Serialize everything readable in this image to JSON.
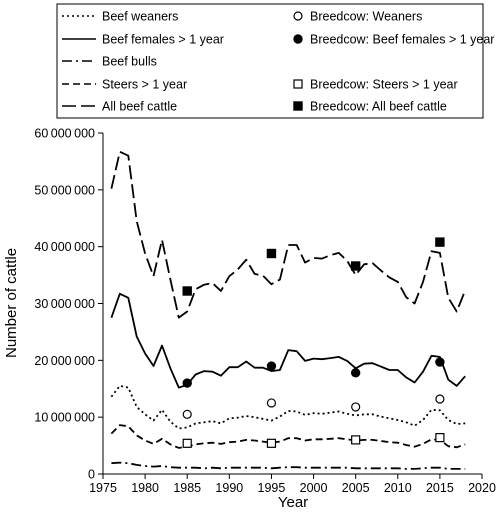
{
  "chart_data": {
    "type": "line",
    "title": "",
    "xlabel": "Year",
    "ylabel": "Number of cattle",
    "xlim": [
      1975,
      2020
    ],
    "ylim": [
      0,
      60000000
    ],
    "x_ticks": [
      "1975",
      "1980",
      "1985",
      "1990",
      "1995",
      "2000",
      "2005",
      "2010",
      "2015",
      "2020"
    ],
    "y_ticks": [
      "0",
      "10000000",
      "20000000",
      "30000000",
      "40000000",
      "50000000",
      "60000000"
    ],
    "grid": false,
    "legend_position": "top",
    "x": [
      1976,
      1977,
      1978,
      1979,
      1980,
      1981,
      1982,
      1983,
      1984,
      1985,
      1986,
      1987,
      1988,
      1989,
      1990,
      1991,
      1992,
      1993,
      1994,
      1995,
      1996,
      1997,
      1998,
      1999,
      2000,
      2001,
      2002,
      2003,
      2004,
      2005,
      2006,
      2007,
      2008,
      2009,
      2010,
      2011,
      2012,
      2013,
      2014,
      2015,
      2016,
      2017,
      2018
    ],
    "series": [
      {
        "name": "Beef weaners",
        "style": "dotted",
        "values": [
          13600000,
          15500000,
          15200000,
          11800000,
          10500000,
          9400000,
          11300000,
          9200000,
          8000000,
          8200000,
          8900000,
          9100000,
          9300000,
          8900000,
          9800000,
          9900000,
          10200000,
          10000000,
          9700000,
          9400000,
          10100000,
          11100000,
          11000000,
          10400000,
          10700000,
          10600000,
          10800000,
          11000000,
          10600000,
          10300000,
          10500000,
          10500000,
          10100000,
          9800000,
          9500000,
          9100000,
          8500000,
          9500000,
          11300000,
          11200000,
          9500000,
          8800000,
          8900000
        ]
      },
      {
        "name": "Beef females > 1 year",
        "style": "solid",
        "values": [
          27500000,
          31700000,
          31000000,
          24200000,
          21200000,
          19000000,
          22600000,
          18600000,
          15200000,
          15700000,
          17500000,
          18100000,
          18000000,
          17300000,
          18800000,
          18800000,
          19800000,
          18700000,
          18700000,
          18100000,
          18300000,
          21800000,
          21600000,
          19900000,
          20300000,
          20200000,
          20400000,
          20600000,
          19900000,
          18600000,
          19400000,
          19500000,
          18900000,
          18300000,
          18300000,
          17000000,
          16100000,
          18000000,
          20800000,
          20600000,
          16600000,
          15500000,
          17200000
        ]
      },
      {
        "name": "Beef bulls",
        "style": "dash-dot",
        "values": [
          1900000,
          2000000,
          1900000,
          1600000,
          1400000,
          1300000,
          1400000,
          1200000,
          1100000,
          1100000,
          1100000,
          1000000,
          1100000,
          1000000,
          1100000,
          1100000,
          1100000,
          1100000,
          1100000,
          1000000,
          1100000,
          1200000,
          1200000,
          1100000,
          1100000,
          1100000,
          1100000,
          1100000,
          1100000,
          1000000,
          1000000,
          1000000,
          1000000,
          1000000,
          1000000,
          900000,
          900000,
          1000000,
          1100000,
          1100000,
          900000,
          900000,
          900000
        ]
      },
      {
        "name": "Steers > 1 year",
        "style": "dashed",
        "values": [
          7100000,
          8600000,
          8400000,
          6800000,
          5900000,
          5300000,
          6200000,
          5200000,
          4600000,
          4800000,
          5200000,
          5400000,
          5500000,
          5300000,
          5600000,
          5700000,
          6000000,
          5900000,
          5700000,
          5500000,
          5700000,
          6300000,
          6300000,
          5900000,
          6100000,
          6100000,
          6200000,
          6300000,
          6100000,
          5900000,
          6000000,
          6000000,
          5800000,
          5600000,
          5500000,
          5100000,
          4800000,
          5300000,
          6100000,
          6000000,
          4900000,
          4700000,
          5200000
        ]
      },
      {
        "name": "All beef cattle",
        "style": "long-dash",
        "values": [
          50200000,
          56700000,
          56000000,
          44500000,
          38800000,
          34800000,
          41200000,
          34200000,
          27500000,
          28600000,
          32500000,
          33300000,
          33600000,
          32200000,
          34800000,
          36000000,
          37700000,
          35200000,
          34900000,
          33400000,
          34200000,
          40300000,
          40300000,
          37200000,
          38000000,
          37900000,
          38500000,
          38900000,
          37500000,
          35000000,
          36900000,
          37100000,
          35800000,
          34600000,
          33800000,
          31100000,
          30000000,
          33800000,
          39200000,
          38900000,
          31000000,
          28600000,
          32300000
        ]
      }
    ],
    "breedcow_series": [
      {
        "name": "Breedcow: Weaners",
        "marker": "open-circle",
        "x": [
          1985,
          1995,
          2005,
          2015
        ],
        "values": [
          10500000,
          12500000,
          11800000,
          13200000
        ]
      },
      {
        "name": "Breedcow: Beef females > 1 year",
        "marker": "filled-circle",
        "x": [
          1985,
          1995,
          2005,
          2015
        ],
        "values": [
          16000000,
          19000000,
          17800000,
          19700000
        ]
      },
      {
        "name": "Breedcow: Steers > 1 year",
        "marker": "open-square",
        "x": [
          1985,
          1995,
          2005,
          2015
        ],
        "values": [
          5400000,
          5400000,
          6000000,
          6400000
        ]
      },
      {
        "name": "Breedcow: All beef cattle",
        "marker": "filled-square",
        "x": [
          1985,
          1995,
          2005,
          2015
        ],
        "values": [
          32200000,
          38800000,
          36600000,
          40800000
        ]
      }
    ],
    "legend": [
      {
        "label": "Beef weaners",
        "kind": "line",
        "style": "dotted"
      },
      {
        "label": "Breedcow: Weaners",
        "kind": "marker",
        "marker": "open-circle"
      },
      {
        "label": "Beef females > 1 year",
        "kind": "line",
        "style": "solid"
      },
      {
        "label": "Breedcow: Beef females > 1 year",
        "kind": "marker",
        "marker": "filled-circle"
      },
      {
        "label": "Beef bulls",
        "kind": "line",
        "style": "dash-dot"
      },
      {
        "label": "",
        "kind": "none"
      },
      {
        "label": "Steers > 1 year",
        "kind": "line",
        "style": "dashed"
      },
      {
        "label": "Breedcow: Steers > 1 year",
        "kind": "marker",
        "marker": "open-square"
      },
      {
        "label": "All beef cattle",
        "kind": "line",
        "style": "long-dash"
      },
      {
        "label": "Breedcow: All beef cattle",
        "kind": "marker",
        "marker": "filled-square"
      }
    ]
  }
}
